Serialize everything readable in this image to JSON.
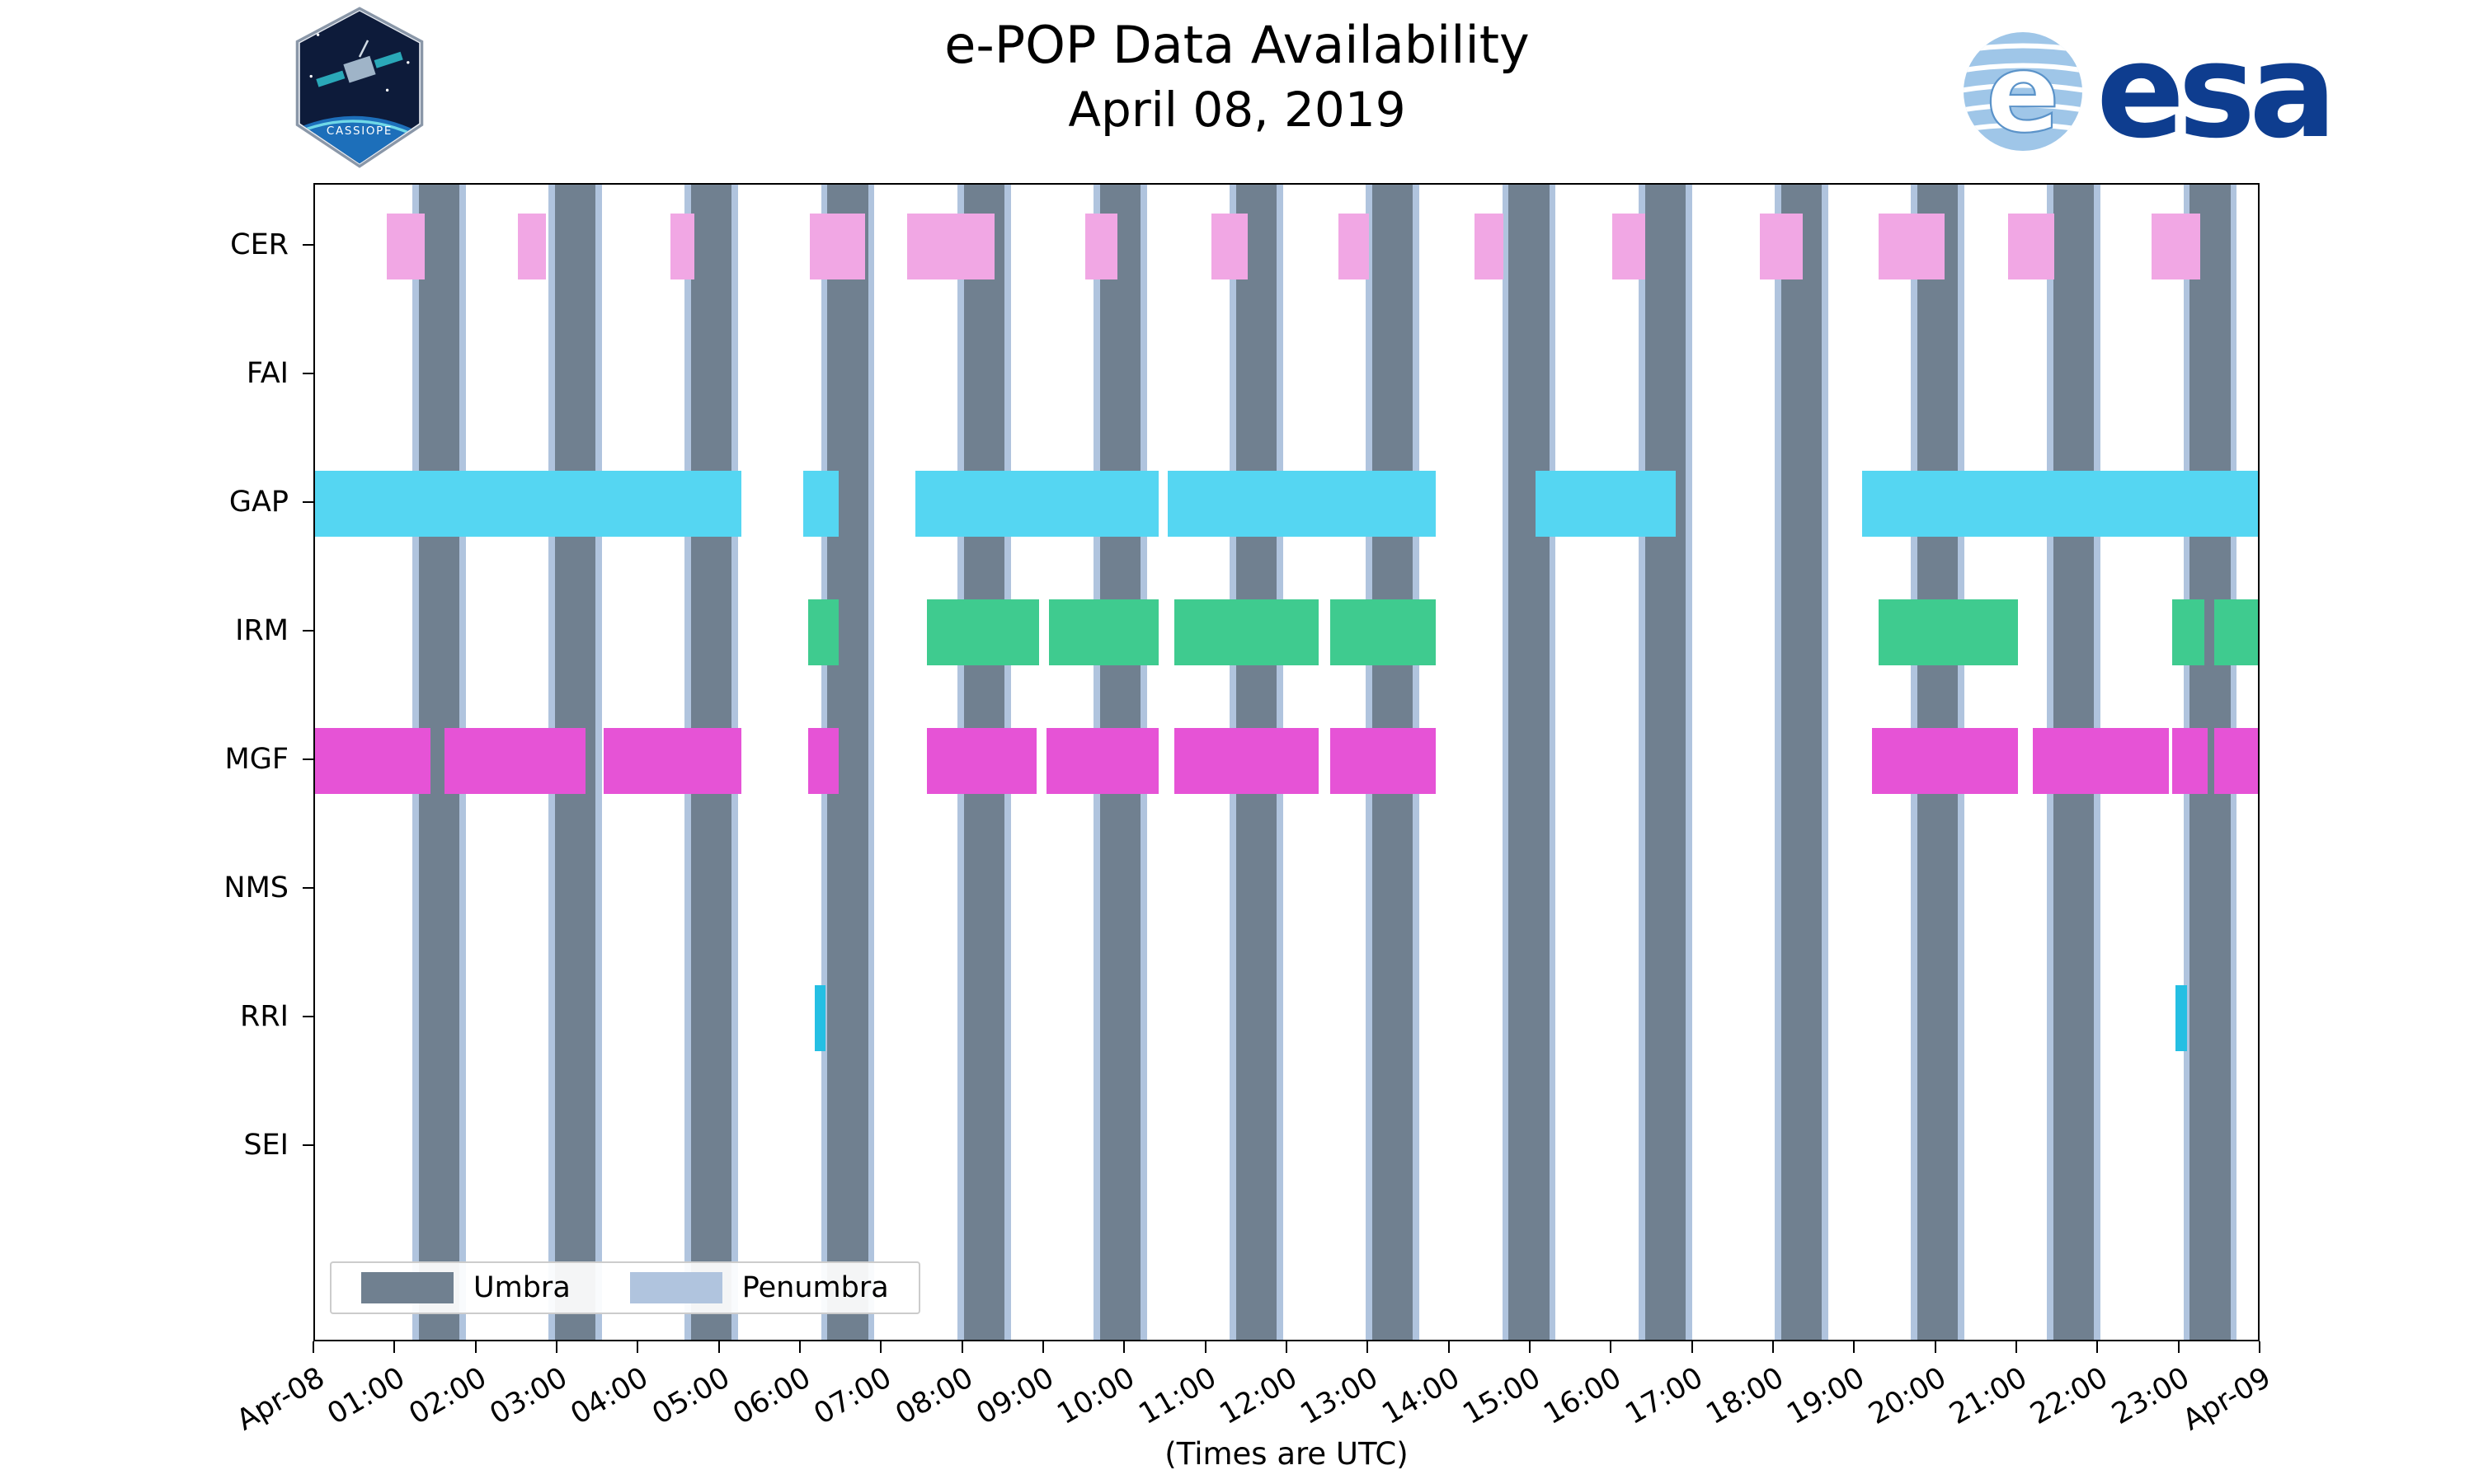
{
  "header": {
    "title": "e-POP Data Availability",
    "subtitle": "April 08, 2019",
    "cassiope_patch_text": "CASSIOPE",
    "esa_wordmark": "esa"
  },
  "chart_data": {
    "type": "timeline-gantt",
    "title": "e-POP Data Availability",
    "subtitle": "April 08, 2019",
    "xlabel": "(Times are UTC)",
    "x_axis": {
      "range_hours": [
        0,
        24
      ],
      "ticks": [
        {
          "hour": 0,
          "label": "Apr-08"
        },
        {
          "hour": 1,
          "label": "01:00"
        },
        {
          "hour": 2,
          "label": "02:00"
        },
        {
          "hour": 3,
          "label": "03:00"
        },
        {
          "hour": 4,
          "label": "04:00"
        },
        {
          "hour": 5,
          "label": "05:00"
        },
        {
          "hour": 6,
          "label": "06:00"
        },
        {
          "hour": 7,
          "label": "07:00"
        },
        {
          "hour": 8,
          "label": "08:00"
        },
        {
          "hour": 9,
          "label": "09:00"
        },
        {
          "hour": 10,
          "label": "10:00"
        },
        {
          "hour": 11,
          "label": "11:00"
        },
        {
          "hour": 12,
          "label": "12:00"
        },
        {
          "hour": 13,
          "label": "13:00"
        },
        {
          "hour": 14,
          "label": "14:00"
        },
        {
          "hour": 15,
          "label": "15:00"
        },
        {
          "hour": 16,
          "label": "16:00"
        },
        {
          "hour": 17,
          "label": "17:00"
        },
        {
          "hour": 18,
          "label": "18:00"
        },
        {
          "hour": 19,
          "label": "19:00"
        },
        {
          "hour": 20,
          "label": "20:00"
        },
        {
          "hour": 21,
          "label": "21:00"
        },
        {
          "hour": 22,
          "label": "22:00"
        },
        {
          "hour": 23,
          "label": "23:00"
        },
        {
          "hour": 24,
          "label": "Apr-09"
        }
      ]
    },
    "rows": [
      "CER",
      "FAI",
      "GAP",
      "IRM",
      "MGF",
      "NMS",
      "RRI",
      "SEI"
    ],
    "series": [
      {
        "name": "CER",
        "color": "#F1A7E4",
        "intervals_hours": [
          [
            0.88,
            1.35
          ],
          [
            2.5,
            2.85
          ],
          [
            4.38,
            4.68
          ],
          [
            6.1,
            6.78
          ],
          [
            7.3,
            8.38
          ],
          [
            9.5,
            9.9
          ],
          [
            11.05,
            11.5
          ],
          [
            12.62,
            13.0
          ],
          [
            14.3,
            14.65
          ],
          [
            16.0,
            16.4
          ],
          [
            17.82,
            18.35
          ],
          [
            19.28,
            20.1
          ],
          [
            20.88,
            21.45
          ],
          [
            22.65,
            23.25
          ]
        ]
      },
      {
        "name": "FAI",
        "color": "#F1A7E4",
        "intervals_hours": []
      },
      {
        "name": "GAP",
        "color": "#55D6F2",
        "intervals_hours": [
          [
            0.0,
            5.26
          ],
          [
            6.02,
            6.46
          ],
          [
            7.4,
            10.4
          ],
          [
            10.52,
            13.82
          ],
          [
            15.05,
            16.78
          ],
          [
            19.08,
            24.0
          ]
        ]
      },
      {
        "name": "IRM",
        "color": "#3FCB8F",
        "intervals_hours": [
          [
            6.08,
            6.46
          ],
          [
            7.55,
            8.93
          ],
          [
            9.05,
            10.4
          ],
          [
            10.6,
            12.38
          ],
          [
            12.52,
            13.82
          ],
          [
            19.28,
            21.0
          ],
          [
            22.9,
            23.3
          ],
          [
            23.42,
            24.0
          ]
        ]
      },
      {
        "name": "MGF",
        "color": "#E653D6",
        "intervals_hours": [
          [
            0.0,
            1.42
          ],
          [
            1.6,
            3.34
          ],
          [
            3.56,
            5.26
          ],
          [
            6.08,
            6.46
          ],
          [
            7.55,
            8.9
          ],
          [
            9.02,
            10.4
          ],
          [
            10.6,
            12.38
          ],
          [
            12.52,
            13.82
          ],
          [
            19.2,
            21.0
          ],
          [
            21.18,
            22.86
          ],
          [
            22.9,
            23.34
          ],
          [
            23.42,
            24.0
          ]
        ]
      },
      {
        "name": "NMS",
        "color": "#55D6F2",
        "intervals_hours": []
      },
      {
        "name": "RRI",
        "color": "#25BFE3",
        "intervals_hours": [
          [
            6.16,
            6.3
          ],
          [
            22.94,
            23.08
          ]
        ]
      },
      {
        "name": "SEI",
        "color": "#55D6F2",
        "intervals_hours": []
      }
    ],
    "umbra": {
      "label": "Umbra",
      "color": "#708090",
      "intervals_hours": [
        [
          1.28,
          1.78
        ],
        [
          2.96,
          3.46
        ],
        [
          4.64,
          5.14
        ],
        [
          6.32,
          6.82
        ],
        [
          8.0,
          8.5
        ],
        [
          9.68,
          10.18
        ],
        [
          11.36,
          11.86
        ],
        [
          13.04,
          13.54
        ],
        [
          14.72,
          15.22
        ],
        [
          16.4,
          16.9
        ],
        [
          18.08,
          18.58
        ],
        [
          19.76,
          20.26
        ],
        [
          21.44,
          21.94
        ],
        [
          23.12,
          23.62
        ]
      ]
    },
    "penumbra": {
      "label": "Penumbra",
      "color": "#B0C4DE",
      "width_hours": 0.08
    },
    "legend": {
      "items": [
        "Umbra",
        "Penumbra"
      ],
      "position": "lower-left"
    }
  }
}
